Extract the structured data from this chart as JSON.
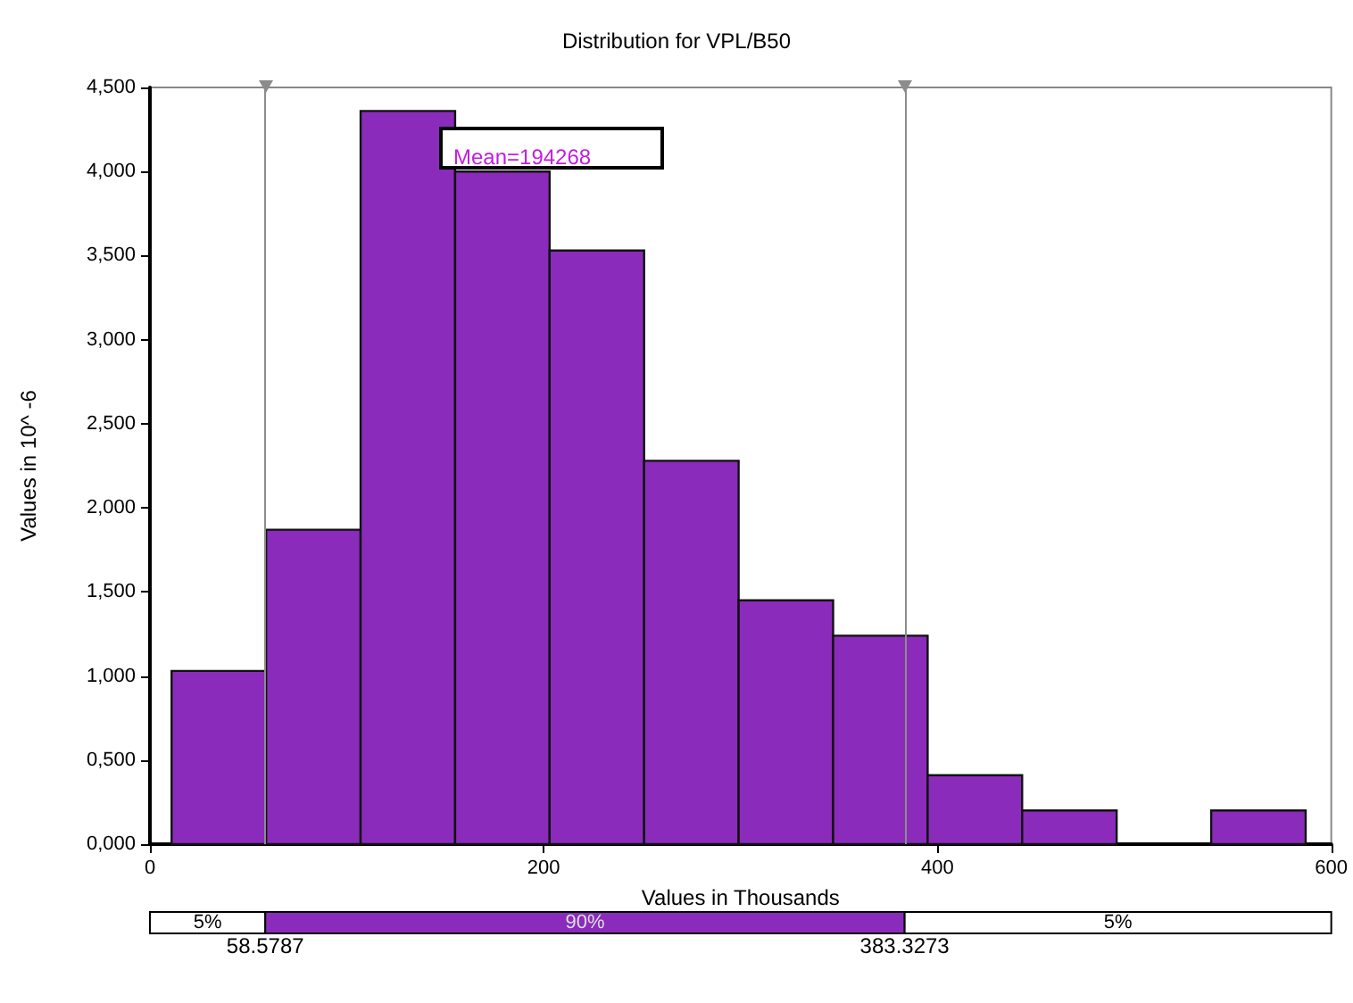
{
  "chart_data": {
    "type": "histogram",
    "title": "Distribution for VPL/B50",
    "xlabel": "Values in Thousands",
    "ylabel": "Values in 10^ -6",
    "bins": [
      11,
      59,
      107,
      155,
      203,
      251,
      299,
      347,
      395,
      443,
      491,
      539,
      587
    ],
    "values": [
      1.03,
      1.87,
      4.36,
      4.0,
      3.53,
      2.28,
      1.45,
      1.24,
      0.41,
      0.2,
      0,
      0.2
    ],
    "color": "#8a2bbb",
    "xlim": [
      0,
      600
    ],
    "xticks": [
      0,
      200,
      400,
      600
    ],
    "ylim": [
      0,
      4.5
    ],
    "yticks": [
      {
        "value": 0,
        "label": "0,000"
      },
      {
        "value": 0.5,
        "label": "0,500"
      },
      {
        "value": 1,
        "label": "1,000"
      },
      {
        "value": 1.5,
        "label": "1,500"
      },
      {
        "value": 2,
        "label": "2,000"
      },
      {
        "value": 2.5,
        "label": "2,500"
      },
      {
        "value": 3,
        "label": "3,000"
      },
      {
        "value": 3.5,
        "label": "3,500"
      },
      {
        "value": 4,
        "label": "4,000"
      },
      {
        "value": 4.5,
        "label": "4,500"
      }
    ],
    "ref_lines": [
      {
        "axis": "x",
        "value": 58.5787,
        "color": "#8c8c8c"
      },
      {
        "axis": "x",
        "value": 383.3273,
        "color": "#8c8c8c"
      }
    ],
    "annotations": [
      "Mean=194268",
      "5%",
      "90%",
      "5%",
      "58.5787",
      "383.3273"
    ],
    "grid": false
  }
}
